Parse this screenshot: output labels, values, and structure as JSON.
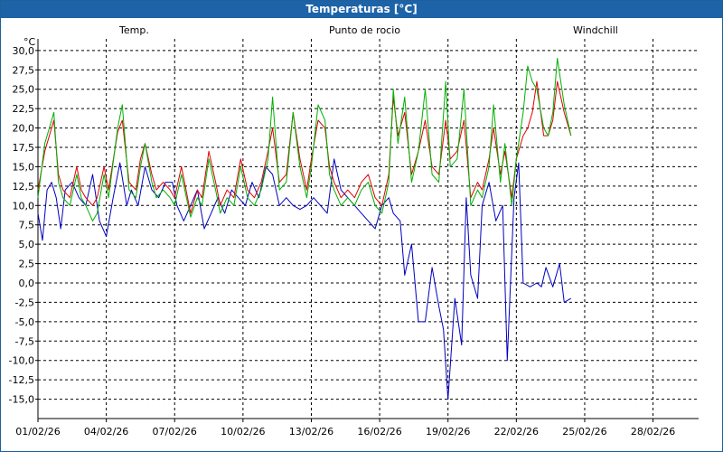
{
  "window": {
    "title": "Temperaturas [°C]"
  },
  "chart_data": {
    "type": "line",
    "unit_label": "°C",
    "y_ticks": [
      "30,0",
      "27,5",
      "25,0",
      "22,5",
      "20,0",
      "17,5",
      "15,0",
      "12,5",
      "10,0",
      "7,5",
      "5,0",
      "2,5",
      "0,0",
      "-2,5",
      "-5,0",
      "-7,5",
      "-10,0",
      "-12,5",
      "-15,0"
    ],
    "x_ticks": [
      "01/02/26",
      "04/02/26",
      "07/02/26",
      "10/02/26",
      "13/02/26",
      "16/02/26",
      "19/02/26",
      "22/02/26",
      "25/02/26",
      "28/02/26"
    ],
    "ylim": [
      -17.5,
      31.5
    ],
    "xlim": [
      0,
      29
    ],
    "grid": true,
    "series": [
      {
        "name": "Temp.",
        "color": "#e00000",
        "x": [
          0,
          0.3,
          0.5,
          0.7,
          0.9,
          1.1,
          1.4,
          1.7,
          1.9,
          2.1,
          2.4,
          2.6,
          2.9,
          3.1,
          3.5,
          3.7,
          4.0,
          4.3,
          4.5,
          4.7,
          5.0,
          5.2,
          5.5,
          5.8,
          6.0,
          6.3,
          6.7,
          7.0,
          7.2,
          7.5,
          7.8,
          8.0,
          8.3,
          8.6,
          8.9,
          9.2,
          9.5,
          9.8,
          10.1,
          10.3,
          10.6,
          10.9,
          11.2,
          11.5,
          11.8,
          12.0,
          12.3,
          12.6,
          12.8,
          13.0,
          13.3,
          13.6,
          13.9,
          14.2,
          14.5,
          14.8,
          15.1,
          15.4,
          15.6,
          15.8,
          16.1,
          16.4,
          16.7,
          17.0,
          17.3,
          17.6,
          17.9,
          18.1,
          18.4,
          18.7,
          19.0,
          19.3,
          19.5,
          19.8,
          20.0,
          20.3,
          20.5,
          20.8,
          21.0,
          21.3,
          21.5,
          21.7,
          21.9,
          22.2,
          22.4,
          22.6,
          22.8,
          23.1,
          23.4
        ],
        "values": [
          12,
          17,
          19,
          21,
          14,
          12,
          11,
          15,
          12,
          11,
          10,
          11,
          15,
          12,
          19.5,
          21,
          13,
          12,
          16,
          18,
          14,
          12,
          13,
          12,
          11,
          15,
          9,
          12,
          11,
          17,
          13,
          10,
          12,
          11,
          16,
          12,
          11,
          13,
          17,
          20,
          13,
          14,
          22,
          16,
          12,
          16,
          21,
          20,
          15,
          13,
          11,
          12,
          11,
          13,
          14,
          11,
          10,
          14,
          24,
          19,
          22,
          14,
          17,
          21,
          15,
          14,
          21,
          16,
          17,
          21,
          11,
          13,
          12,
          16,
          20,
          14,
          17,
          11,
          16,
          19,
          20,
          22,
          26,
          19,
          19,
          21,
          26,
          22,
          19
        ]
      },
      {
        "name": "Punto de rocio",
        "color": "#0000c0",
        "x": [
          0,
          0.2,
          0.4,
          0.6,
          0.8,
          1.0,
          1.2,
          1.5,
          1.8,
          2.1,
          2.4,
          2.7,
          3.0,
          3.3,
          3.6,
          3.9,
          4.1,
          4.4,
          4.7,
          5.0,
          5.3,
          5.6,
          5.9,
          6.1,
          6.4,
          6.7,
          7.0,
          7.3,
          7.6,
          7.9,
          8.2,
          8.5,
          8.8,
          9.1,
          9.4,
          9.7,
          10.0,
          10.3,
          10.6,
          10.9,
          11.2,
          11.5,
          11.8,
          12.1,
          12.4,
          12.7,
          13.0,
          13.3,
          13.6,
          13.9,
          14.2,
          14.5,
          14.8,
          15.1,
          15.4,
          15.6,
          15.9,
          16.1,
          16.4,
          16.7,
          17.0,
          17.3,
          17.6,
          17.8,
          18.0,
          18.3,
          18.6,
          18.8,
          19.0,
          19.3,
          19.5,
          19.8,
          20.1,
          20.4,
          20.6,
          20.9,
          21.1,
          21.3,
          21.6,
          21.9,
          22.1,
          22.3,
          22.6,
          22.9,
          23.1,
          23.4
        ],
        "values": [
          9,
          5.5,
          12,
          13,
          11,
          7,
          12,
          13,
          11,
          10,
          14,
          8,
          6,
          11,
          15.5,
          10,
          12,
          10,
          15,
          12,
          11,
          13,
          13,
          10,
          8,
          10,
          12,
          7,
          9,
          11,
          9,
          12,
          11,
          10,
          13,
          11,
          15,
          14,
          10,
          11,
          10,
          9.5,
          10,
          11,
          10,
          9,
          16,
          12,
          11,
          10,
          9,
          8,
          7,
          10,
          11,
          9,
          8,
          1,
          5,
          -5,
          -5,
          2,
          -3,
          -6,
          -15,
          -2,
          -8,
          11,
          1,
          -2,
          10,
          13,
          8,
          10,
          -10,
          11,
          15.5,
          0,
          -0.5,
          0,
          -0.5,
          2,
          -0.5,
          2.5,
          -2.5,
          -2
        ]
      },
      {
        "name": "Windchill",
        "color": "#00b000",
        "x": [
          0,
          0.3,
          0.5,
          0.7,
          0.9,
          1.1,
          1.4,
          1.7,
          1.9,
          2.1,
          2.4,
          2.6,
          2.9,
          3.1,
          3.5,
          3.7,
          4.0,
          4.3,
          4.5,
          4.7,
          5.0,
          5.2,
          5.5,
          5.8,
          6.0,
          6.3,
          6.7,
          7.0,
          7.2,
          7.5,
          7.8,
          8.0,
          8.3,
          8.6,
          8.9,
          9.2,
          9.5,
          9.8,
          10.1,
          10.3,
          10.6,
          10.9,
          11.2,
          11.5,
          11.8,
          12.0,
          12.3,
          12.6,
          12.8,
          13.0,
          13.3,
          13.6,
          13.9,
          14.2,
          14.5,
          14.8,
          15.1,
          15.4,
          15.6,
          15.8,
          16.1,
          16.4,
          16.7,
          17.0,
          17.3,
          17.6,
          17.9,
          18.1,
          18.4,
          18.7,
          19.0,
          19.3,
          19.5,
          19.8,
          20.0,
          20.3,
          20.5,
          20.8,
          21.0,
          21.3,
          21.5,
          21.7,
          21.9,
          22.2,
          22.4,
          22.6,
          22.8,
          23.1,
          23.4
        ],
        "values": [
          11,
          18,
          20,
          22,
          13,
          11,
          10,
          14,
          11,
          10,
          8,
          9,
          14,
          11,
          20,
          23,
          12,
          11,
          15,
          18,
          13,
          11,
          12,
          11,
          10,
          14,
          8.5,
          11,
          10,
          16,
          12,
          9,
          11,
          10,
          15,
          11,
          10,
          12,
          16,
          24,
          12,
          13,
          22,
          15,
          11,
          15,
          23,
          21,
          14,
          12,
          10,
          11,
          10,
          12,
          13,
          10,
          9,
          13,
          25,
          18,
          24,
          13,
          17,
          25,
          14,
          13,
          26,
          15,
          16,
          25,
          10,
          12,
          11,
          15,
          23,
          13,
          18,
          10,
          16,
          22,
          28,
          26,
          25,
          20,
          19,
          22,
          29,
          23,
          19
        ]
      }
    ]
  }
}
